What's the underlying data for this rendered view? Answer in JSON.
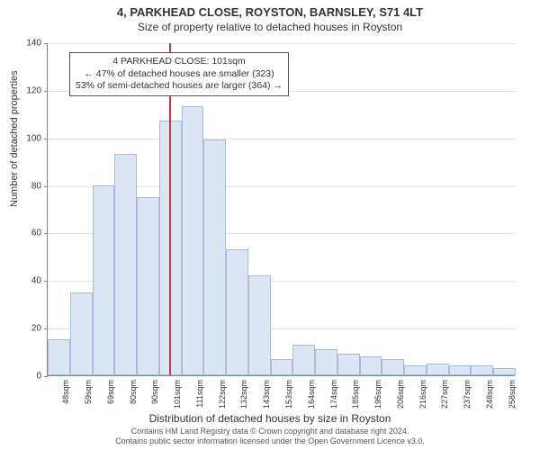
{
  "title": "4, PARKHEAD CLOSE, ROYSTON, BARNSLEY, S71 4LT",
  "subtitle": "Size of property relative to detached houses in Royston",
  "ylabel": "Number of detached properties",
  "xlabel": "Distribution of detached houses by size in Royston",
  "chart": {
    "type": "histogram",
    "ylim": [
      0,
      140
    ],
    "ytick_step": 20,
    "bar_fill": "#dbe5f4",
    "bar_stroke": "#a9bbd6",
    "grid_color": "#888888",
    "background_color": "#ffffff",
    "bar_width_ratio": 1.0,
    "categories": [
      "48sqm",
      "59sqm",
      "69sqm",
      "80sqm",
      "90sqm",
      "101sqm",
      "111sqm",
      "122sqm",
      "132sqm",
      "143sqm",
      "153sqm",
      "164sqm",
      "174sqm",
      "185sqm",
      "195sqm",
      "206sqm",
      "216sqm",
      "227sqm",
      "237sqm",
      "248sqm",
      "258sqm"
    ],
    "values": [
      15,
      35,
      80,
      93,
      75,
      107,
      113,
      99,
      53,
      42,
      7,
      13,
      11,
      9,
      8,
      7,
      4,
      5,
      4,
      4,
      3
    ],
    "reference_line": {
      "index": 5,
      "color": "#c23a3a",
      "width": 2
    }
  },
  "annotation": {
    "line1": "4 PARKHEAD CLOSE: 101sqm",
    "line2": "← 47% of detached houses are smaller (323)",
    "line3": "53% of semi-detached houses are larger (364) →"
  },
  "footer": {
    "line1": "Contains HM Land Registry data © Crown copyright and database right 2024.",
    "line2": "Contains public sector information licensed under the Open Government Licence v3.0."
  },
  "fonts": {
    "title_size": 13,
    "subtitle_size": 12,
    "label_size": 11,
    "tick_size": 10
  }
}
